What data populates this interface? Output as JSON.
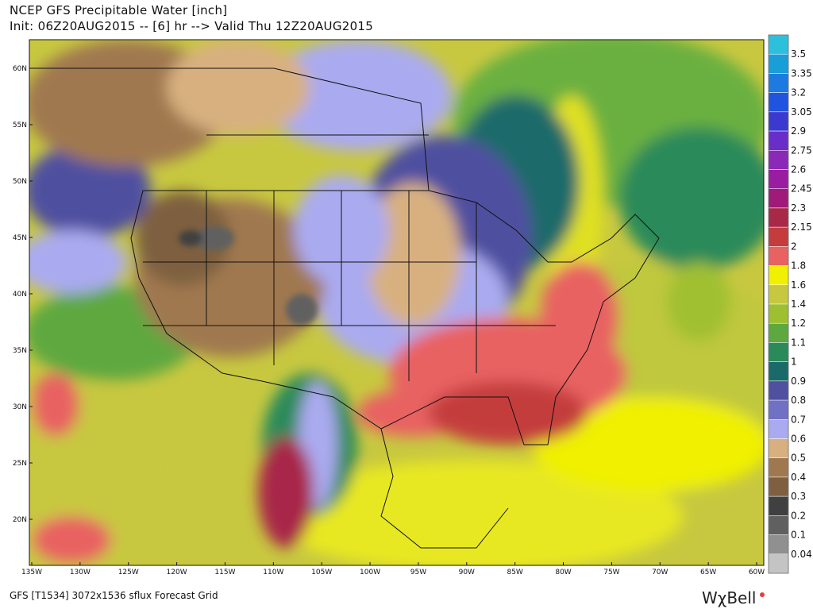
{
  "header": {
    "title": "NCEP GFS Precipitable Water [inch]",
    "subtitle": "Init: 06Z20AUG2015 -- [6] hr --> Valid Thu 12Z20AUG2015"
  },
  "map": {
    "lat_labels": [
      "60N",
      "55N",
      "50N",
      "45N",
      "40N",
      "35N",
      "30N",
      "25N",
      "20N"
    ],
    "lon_labels": [
      "135W",
      "130W",
      "125W",
      "120W",
      "115W",
      "110W",
      "105W",
      "100W",
      "95W",
      "90W",
      "85W",
      "80W",
      "75W",
      "70W",
      "65W",
      "60W"
    ]
  },
  "colorbar": {
    "top_color": "#2cc0dc",
    "levels": [
      {
        "value": 3.5,
        "color": "#1a9ed8"
      },
      {
        "value": 3.35,
        "color": "#1c7ae0"
      },
      {
        "value": 3.2,
        "color": "#2054e0"
      },
      {
        "value": 3.05,
        "color": "#3a3ad0"
      },
      {
        "value": 2.9,
        "color": "#6a2ec8"
      },
      {
        "value": 2.75,
        "color": "#8a28b8"
      },
      {
        "value": 2.6,
        "color": "#9a1ca0"
      },
      {
        "value": 2.45,
        "color": "#a01a7a"
      },
      {
        "value": 2.3,
        "color": "#a82848"
      },
      {
        "value": 2.15,
        "color": "#c43c3c"
      },
      {
        "value": 2,
        "color": "#e86262"
      },
      {
        "value": 1.8,
        "color": "#f0f000"
      },
      {
        "value": 1.6,
        "color": "#c8c840"
      },
      {
        "value": 1.4,
        "color": "#9ec030"
      },
      {
        "value": 1.2,
        "color": "#5ea840"
      },
      {
        "value": 1.1,
        "color": "#2a8a5a"
      },
      {
        "value": 1,
        "color": "#1a6a6a"
      },
      {
        "value": 0.9,
        "color": "#5050a0"
      },
      {
        "value": 0.8,
        "color": "#7070c4"
      },
      {
        "value": 0.7,
        "color": "#aaaaf0"
      },
      {
        "value": 0.6,
        "color": "#d8b080"
      },
      {
        "value": 0.5,
        "color": "#a07850"
      },
      {
        "value": 0.4,
        "color": "#7e6040"
      },
      {
        "value": 0.3,
        "color": "#404040"
      },
      {
        "value": 0.2,
        "color": "#606060"
      },
      {
        "value": 0.1,
        "color": "#909090"
      },
      {
        "value": 0.04,
        "color": "#c4c4c4"
      }
    ]
  },
  "footer": {
    "text": "GFS [T1534] 3072x1536 sflux Forecast Grid",
    "logo": "WχBell"
  }
}
